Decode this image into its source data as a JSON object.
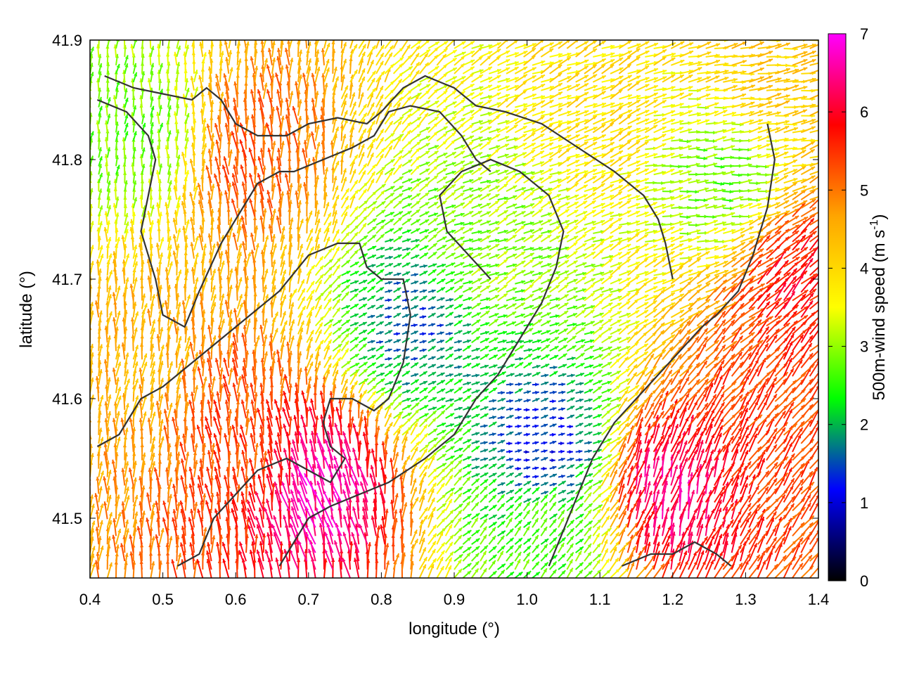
{
  "chart_data": {
    "type": "vector-field",
    "xlabel": "longitude (°)",
    "ylabel": "latitude (°)",
    "xlim": [
      0.4,
      1.4
    ],
    "ylim": [
      41.45,
      41.9
    ],
    "xticks": [
      0.4,
      0.5,
      0.6,
      0.7,
      0.8,
      0.9,
      1.0,
      1.1,
      1.2,
      1.3,
      1.4
    ],
    "xtick_labels": [
      "0.4",
      "0.5",
      "0.6",
      "0.7",
      "0.8",
      "0.9",
      "1.0",
      "1.1",
      "1.2",
      "1.3",
      "1.4"
    ],
    "yticks": [
      41.5,
      41.6,
      41.7,
      41.8,
      41.9
    ],
    "ytick_labels": [
      "41.5",
      "41.6",
      "41.7",
      "41.8",
      "41.9"
    ],
    "grid": false,
    "colorbar": {
      "label_main": "500m-wind speed (m s",
      "label_sup": "-1",
      "label_end": ")",
      "range": [
        0,
        7
      ],
      "ticks": [
        0,
        1,
        2,
        3,
        4,
        5,
        6,
        7
      ],
      "tick_labels": [
        "0",
        "1",
        "2",
        "3",
        "4",
        "5",
        "6",
        "7"
      ],
      "colors": [
        "#000000",
        "#0000ff",
        "#00ff00",
        "#ffff00",
        "#ffa500",
        "#ff0000",
        "#ff00ff"
      ]
    },
    "wind_regions": [
      {
        "lon": 0.47,
        "lat": 41.82,
        "speed": 2.8,
        "dir_deg": 85
      },
      {
        "lon": 0.62,
        "lat": 41.8,
        "speed": 5.2,
        "dir_deg": 95
      },
      {
        "lon": 0.6,
        "lat": 41.56,
        "speed": 5.3,
        "dir_deg": 95
      },
      {
        "lon": 0.72,
        "lat": 41.52,
        "speed": 6.6,
        "dir_deg": 105
      },
      {
        "lon": 0.45,
        "lat": 41.62,
        "speed": 4.5,
        "dir_deg": 85
      },
      {
        "lon": 0.84,
        "lat": 41.66,
        "speed": 1.6,
        "dir_deg": 20
      },
      {
        "lon": 1.02,
        "lat": 41.56,
        "speed": 1.2,
        "dir_deg": 10
      },
      {
        "lon": 0.95,
        "lat": 41.72,
        "speed": 3.0,
        "dir_deg": 25
      },
      {
        "lon": 1.08,
        "lat": 41.85,
        "speed": 3.9,
        "dir_deg": 25
      },
      {
        "lon": 1.26,
        "lat": 41.78,
        "speed": 2.8,
        "dir_deg": 5
      },
      {
        "lon": 1.33,
        "lat": 41.88,
        "speed": 4.2,
        "dir_deg": 10
      },
      {
        "lon": 1.19,
        "lat": 41.52,
        "speed": 6.4,
        "dir_deg": 75
      },
      {
        "lon": 1.33,
        "lat": 41.58,
        "speed": 5.4,
        "dir_deg": 55
      },
      {
        "lon": 1.36,
        "lat": 41.7,
        "speed": 5.8,
        "dir_deg": 45
      },
      {
        "lon": 1.02,
        "lat": 41.48,
        "speed": 2.6,
        "dir_deg": 50
      }
    ],
    "contours": [
      [
        [
          0.42,
          41.87
        ],
        [
          0.46,
          41.86
        ],
        [
          0.5,
          41.855
        ],
        [
          0.54,
          41.85
        ],
        [
          0.56,
          41.86
        ],
        [
          0.58,
          41.85
        ],
        [
          0.6,
          41.83
        ],
        [
          0.63,
          41.82
        ],
        [
          0.67,
          41.82
        ],
        [
          0.7,
          41.83
        ],
        [
          0.74,
          41.835
        ],
        [
          0.78,
          41.83
        ],
        [
          0.8,
          41.84
        ],
        [
          0.83,
          41.86
        ],
        [
          0.86,
          41.87
        ],
        [
          0.9,
          41.86
        ],
        [
          0.93,
          41.845
        ],
        [
          0.97,
          41.84
        ],
        [
          1.02,
          41.83
        ],
        [
          1.07,
          41.81
        ],
        [
          1.12,
          41.79
        ],
        [
          1.16,
          41.77
        ],
        [
          1.18,
          41.75
        ],
        [
          1.19,
          41.73
        ],
        [
          1.2,
          41.7
        ]
      ],
      [
        [
          0.41,
          41.85
        ],
        [
          0.45,
          41.84
        ],
        [
          0.48,
          41.82
        ],
        [
          0.49,
          41.8
        ],
        [
          0.48,
          41.77
        ],
        [
          0.47,
          41.74
        ],
        [
          0.49,
          41.7
        ],
        [
          0.5,
          41.67
        ],
        [
          0.53,
          41.66
        ],
        [
          0.55,
          41.69
        ],
        [
          0.58,
          41.73
        ],
        [
          0.61,
          41.76
        ],
        [
          0.63,
          41.78
        ],
        [
          0.66,
          41.79
        ],
        [
          0.68,
          41.79
        ],
        [
          0.72,
          41.8
        ],
        [
          0.76,
          41.81
        ],
        [
          0.79,
          41.82
        ],
        [
          0.81,
          41.84
        ],
        [
          0.84,
          41.845
        ],
        [
          0.88,
          41.84
        ],
        [
          0.91,
          41.82
        ],
        [
          0.93,
          41.8
        ],
        [
          0.95,
          41.79
        ]
      ],
      [
        [
          0.41,
          41.56
        ],
        [
          0.44,
          41.57
        ],
        [
          0.47,
          41.6
        ],
        [
          0.5,
          41.61
        ],
        [
          0.54,
          41.63
        ],
        [
          0.58,
          41.65
        ],
        [
          0.62,
          41.67
        ],
        [
          0.66,
          41.69
        ],
        [
          0.7,
          41.72
        ],
        [
          0.74,
          41.73
        ],
        [
          0.77,
          41.73
        ],
        [
          0.78,
          41.71
        ],
        [
          0.8,
          41.7
        ],
        [
          0.83,
          41.7
        ],
        [
          0.84,
          41.67
        ],
        [
          0.83,
          41.63
        ],
        [
          0.81,
          41.6
        ],
        [
          0.79,
          41.59
        ],
        [
          0.76,
          41.6
        ],
        [
          0.73,
          41.6
        ],
        [
          0.72,
          41.58
        ],
        [
          0.73,
          41.56
        ],
        [
          0.75,
          41.55
        ],
        [
          0.73,
          41.53
        ],
        [
          0.7,
          41.54
        ],
        [
          0.67,
          41.55
        ],
        [
          0.63,
          41.54
        ],
        [
          0.6,
          41.52
        ],
        [
          0.57,
          41.5
        ],
        [
          0.55,
          41.47
        ],
        [
          0.52,
          41.46
        ]
      ],
      [
        [
          0.66,
          41.46
        ],
        [
          0.68,
          41.48
        ],
        [
          0.7,
          41.5
        ],
        [
          0.73,
          41.51
        ],
        [
          0.77,
          41.52
        ],
        [
          0.81,
          41.53
        ],
        [
          0.86,
          41.55
        ],
        [
          0.9,
          41.57
        ],
        [
          0.93,
          41.6
        ],
        [
          0.96,
          41.62
        ],
        [
          0.98,
          41.64
        ],
        [
          1.0,
          41.66
        ],
        [
          1.02,
          41.68
        ],
        [
          1.04,
          41.71
        ],
        [
          1.05,
          41.74
        ],
        [
          1.03,
          41.77
        ],
        [
          0.99,
          41.79
        ],
        [
          0.95,
          41.8
        ],
        [
          0.91,
          41.79
        ],
        [
          0.88,
          41.77
        ],
        [
          0.89,
          41.74
        ],
        [
          0.92,
          41.72
        ],
        [
          0.95,
          41.7
        ]
      ],
      [
        [
          1.03,
          41.46
        ],
        [
          1.05,
          41.49
        ],
        [
          1.07,
          41.52
        ],
        [
          1.09,
          41.55
        ],
        [
          1.12,
          41.58
        ],
        [
          1.15,
          41.6
        ],
        [
          1.18,
          41.62
        ],
        [
          1.21,
          41.64
        ],
        [
          1.24,
          41.66
        ],
        [
          1.26,
          41.67
        ],
        [
          1.29,
          41.69
        ],
        [
          1.31,
          41.72
        ],
        [
          1.33,
          41.76
        ],
        [
          1.34,
          41.8
        ],
        [
          1.33,
          41.83
        ]
      ],
      [
        [
          1.13,
          41.46
        ],
        [
          1.17,
          41.47
        ],
        [
          1.2,
          41.47
        ],
        [
          1.23,
          41.48
        ],
        [
          1.26,
          41.47
        ],
        [
          1.28,
          41.46
        ]
      ]
    ]
  }
}
